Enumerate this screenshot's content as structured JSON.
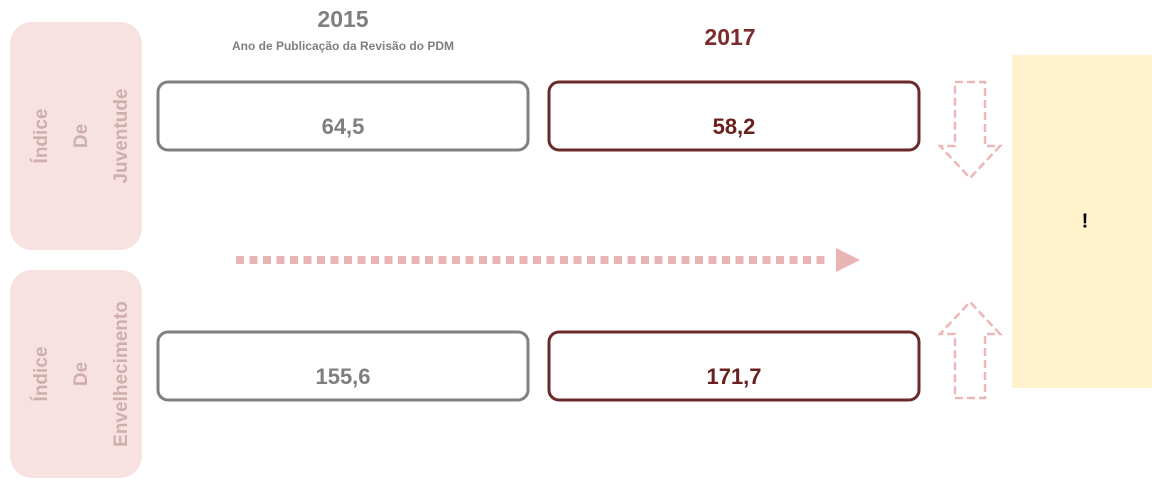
{
  "columns": [
    {
      "year": "2015",
      "subtitle": "Ano de Publicação da Revisão do PDM"
    },
    {
      "year": "2017"
    }
  ],
  "rows": [
    {
      "label": [
        "Índice",
        "De",
        "Juventude"
      ],
      "values": [
        "64,5",
        "58,2"
      ]
    },
    {
      "label": [
        "Índice",
        "De",
        "Envelhecimento"
      ],
      "values": [
        "155,6",
        "171,7"
      ]
    }
  ],
  "note": "!"
}
